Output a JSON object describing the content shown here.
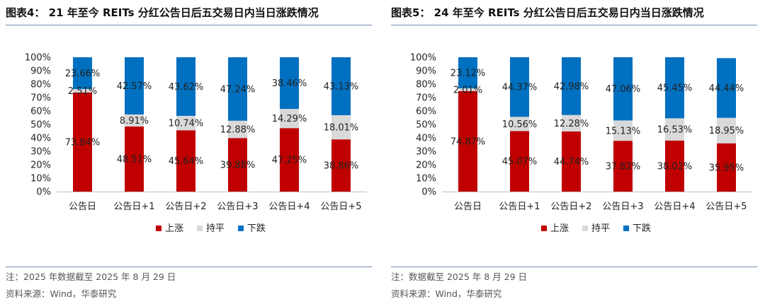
{
  "colors": {
    "up": "#c00000",
    "flat": "#d9d9d9",
    "down": "#0070c0",
    "rule": "#6d8cb4"
  },
  "chart_data": [
    {
      "type": "bar",
      "stacked": true,
      "percent": true,
      "title": "图表4：  21 年至今 REITs 分红公告日后五交易日内当日涨跌情况",
      "categories": [
        "公告日",
        "公告日+1",
        "公告日+2",
        "公告日+3",
        "公告日+4",
        "公告日+5"
      ],
      "series": [
        {
          "name": "上涨",
          "color": "#c00000",
          "values": [
            73.84,
            48.51,
            45.64,
            39.88,
            47.25,
            38.86
          ],
          "labels": [
            "73.84%",
            "48.51%",
            "45.64%",
            "39.88%",
            "47.25%",
            "38.86%"
          ]
        },
        {
          "name": "持平",
          "color": "#d9d9d9",
          "values": [
            2.51,
            8.91,
            10.74,
            12.88,
            14.29,
            18.01
          ],
          "labels": [
            "2.51%",
            "8.91%",
            "10.74%",
            "12.88%",
            "14.29%",
            "18.01%"
          ]
        },
        {
          "name": "下跌",
          "color": "#0070c0",
          "values": [
            23.66,
            42.57,
            43.62,
            47.24,
            38.46,
            43.13
          ],
          "labels": [
            "23.66%",
            "42.57%",
            "43.62%",
            "47.24%",
            "38.46%",
            "43.13%"
          ]
        }
      ],
      "yticks": [
        "0%",
        "10%",
        "20%",
        "30%",
        "40%",
        "50%",
        "60%",
        "70%",
        "80%",
        "90%",
        "100%"
      ],
      "ylim": [
        0,
        100
      ],
      "grid": false,
      "legend": "bottom",
      "note": "注：2025 年数据截至 2025 年 8 月 29 日",
      "source": "资料来源：Wind，华泰研究"
    },
    {
      "type": "bar",
      "stacked": true,
      "percent": true,
      "title": "图表5：  24 年至今 REITs 分红公告日后五交易日内当日涨跌情况",
      "categories": [
        "公告日",
        "公告日+1",
        "公告日+2",
        "公告日+3",
        "公告日+4",
        "公告日+5"
      ],
      "series": [
        {
          "name": "上涨",
          "color": "#c00000",
          "values": [
            74.87,
            45.07,
            44.74,
            37.82,
            38.02,
            35.95
          ],
          "labels": [
            "74.87%",
            "45.07%",
            "44.74%",
            "37.82%",
            "38.02%",
            "35.95%"
          ]
        },
        {
          "name": "持平",
          "color": "#d9d9d9",
          "values": [
            2.01,
            10.56,
            12.28,
            15.13,
            16.53,
            18.95
          ],
          "labels": [
            "2.01%",
            "10.56%",
            "12.28%",
            "15.13%",
            "16.53%",
            "18.95%"
          ]
        },
        {
          "name": "下跌",
          "color": "#0070c0",
          "values": [
            23.12,
            44.37,
            42.98,
            47.06,
            45.45,
            44.44
          ],
          "labels": [
            "23.12%",
            "44.37%",
            "42.98%",
            "47.06%",
            "45.45%",
            "44.44%"
          ]
        }
      ],
      "yticks": [
        "0%",
        "10%",
        "20%",
        "30%",
        "40%",
        "50%",
        "60%",
        "70%",
        "80%",
        "90%",
        "100%"
      ],
      "ylim": [
        0,
        100
      ],
      "grid": false,
      "legend": "bottom",
      "note": "注：数据截至 2025 年 8 月 29 日",
      "source": "资料来源：Wind，华泰研究"
    }
  ]
}
